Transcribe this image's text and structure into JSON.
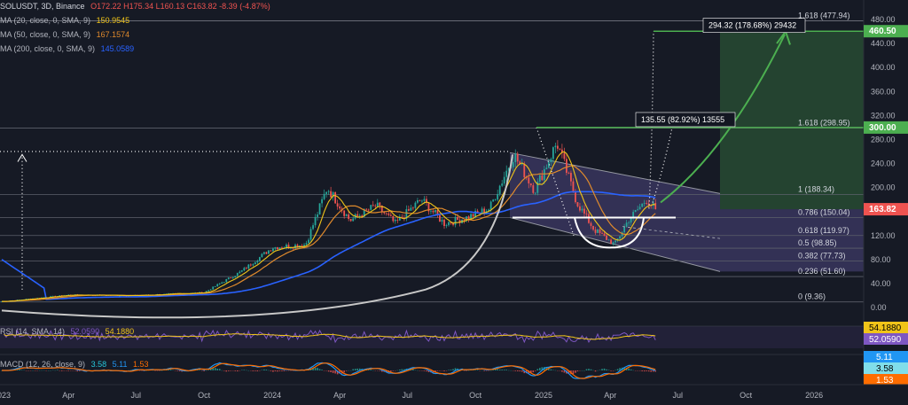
{
  "header": {
    "symbol": "SOLUSDT, 3D, Binance",
    "ohlc": "O172.22  H175.34  L160.13  C163.82  -8.39 (-4.87%)",
    "ma20_label": "MA (20, close, 0, SMA, 9)",
    "ma20_value": "150.9545",
    "ma50_label": "MA (50, close, 0, SMA, 9)",
    "ma50_value": "167.1574",
    "ma200_label": "MA (200, close, 0, SMA, 9)",
    "ma200_value": "145.0589",
    "rsi_label": "RSI (14, SMA, 14)",
    "rsi_value": "52.0590",
    "rsi_ma_value": "54.1880",
    "macd_label": "MACD (12, 26, close, 9)",
    "macd_v1": "3.58",
    "macd_v2": "5.11",
    "macd_v3": "1.53"
  },
  "colors": {
    "background": "#161a25",
    "up": "#26a69a",
    "down": "#ef5350",
    "ma20": "#f0c419",
    "ma50": "#e08a2c",
    "ma200": "#2962ff",
    "green_target": "#4caf50",
    "channel_fill": "#6b5fb0",
    "rsi": "#7e57c2",
    "macd": "#2196f3",
    "signal": "#ff6d00"
  },
  "chart_data": {
    "type": "line",
    "price_axis": {
      "range": [
        0,
        480
      ],
      "ticks": [
        "480.00",
        "440.00",
        "400.00",
        "360.00",
        "320.00",
        "280.00",
        "240.00",
        "200.00",
        "160.00",
        "120.00",
        "80.00",
        "40.00",
        "0.00"
      ]
    },
    "time_axis": {
      "ticks": [
        "2023",
        "Apr",
        "Jul",
        "Oct",
        "2024",
        "Apr",
        "Jul",
        "Oct",
        "2025",
        "Apr",
        "Jul",
        "Oct",
        "2026"
      ]
    },
    "fib_levels": [
      {
        "label": "1.618 (477.94)",
        "value": 477.94
      },
      {
        "label": "1.618 (298.95)",
        "value": 298.95
      },
      {
        "label": "1 (188.34)",
        "value": 188.34
      },
      {
        "label": "0.786 (150.04)",
        "value": 150.04
      },
      {
        "label": "0.618 (119.97)",
        "value": 119.97
      },
      {
        "label": "0.5 (98.85)",
        "value": 98.85
      },
      {
        "label": "0.382 (77.73)",
        "value": 77.73
      },
      {
        "label": "0.236 (51.60)",
        "value": 51.6
      },
      {
        "label": "0 (9.36)",
        "value": 9.36
      }
    ],
    "price_tags": [
      {
        "label": "460.50",
        "value": 460.5,
        "color": "#4caf50"
      },
      {
        "label": "300.00",
        "value": 300.0,
        "color": "#4caf50"
      },
      {
        "label": "163.82",
        "value": 163.82,
        "color": "#ef5350"
      }
    ],
    "annotations": [
      {
        "label": "294.32 (178.68%) 29432",
        "at_value": 474
      },
      {
        "label": "135.55 (82.92%) 13555",
        "at_value": 311
      }
    ],
    "anchors": [
      {
        "date": "2023-01-01",
        "price": 10
      },
      {
        "date": "2023-04-01",
        "price": 21
      },
      {
        "date": "2023-07-01",
        "price": 20
      },
      {
        "date": "2023-10-01",
        "price": 25
      },
      {
        "date": "2023-11-20",
        "price": 60
      },
      {
        "date": "2024-01-01",
        "price": 100
      },
      {
        "date": "2024-02-15",
        "price": 105
      },
      {
        "date": "2024-03-15",
        "price": 200
      },
      {
        "date": "2024-04-15",
        "price": 145
      },
      {
        "date": "2024-05-20",
        "price": 170
      },
      {
        "date": "2024-06-15",
        "price": 140
      },
      {
        "date": "2024-07-20",
        "price": 180
      },
      {
        "date": "2024-08-20",
        "price": 140
      },
      {
        "date": "2024-09-20",
        "price": 150
      },
      {
        "date": "2024-10-20",
        "price": 165
      },
      {
        "date": "2024-11-22",
        "price": 255
      },
      {
        "date": "2024-12-20",
        "price": 195
      },
      {
        "date": "2025-01-19",
        "price": 275
      },
      {
        "date": "2025-02-15",
        "price": 175
      },
      {
        "date": "2025-03-10",
        "price": 130
      },
      {
        "date": "2025-04-07",
        "price": 105
      },
      {
        "date": "2025-04-25",
        "price": 145
      },
      {
        "date": "2025-05-20",
        "price": 180
      },
      {
        "date": "2025-06-01",
        "price": 163.82
      }
    ],
    "rsi": {
      "range": [
        0,
        100
      ],
      "last": 52.059,
      "ma_last": 54.188
    },
    "macd": {
      "macd_last": 5.11,
      "signal_last": 3.58,
      "hist_last": 1.53
    }
  }
}
